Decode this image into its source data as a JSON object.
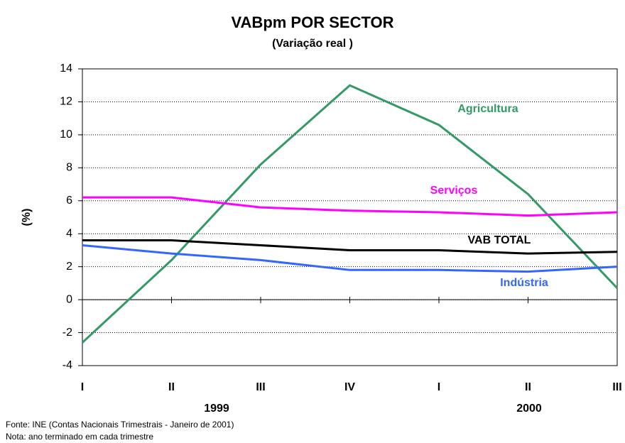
{
  "chart_data": {
    "type": "line",
    "title": "VABpm POR SECTOR",
    "subtitle": "(Variação real )",
    "y_label": "(%)",
    "categories": [
      "I",
      "II",
      "III",
      "IV",
      "I",
      "II",
      "III"
    ],
    "year_labels": [
      "1999",
      "2000"
    ],
    "series": [
      {
        "name": "Agricultura",
        "color": "#339966",
        "values": [
          -2.6,
          2.4,
          8.2,
          13.0,
          10.6,
          6.4,
          0.7
        ]
      },
      {
        "name": "Serviços",
        "color": "#ff00ff",
        "values": [
          6.2,
          6.2,
          5.6,
          5.4,
          5.3,
          5.1,
          5.3
        ]
      },
      {
        "name": "VAB TOTAL",
        "color": "#000000",
        "values": [
          3.6,
          3.6,
          3.3,
          3.0,
          3.0,
          2.8,
          2.9
        ]
      },
      {
        "name": "Indústria",
        "color": "#3366ff",
        "values": [
          3.3,
          2.8,
          2.4,
          1.8,
          1.8,
          1.7,
          2.0
        ]
      }
    ],
    "ylim": [
      -4,
      14
    ],
    "yticks": [
      -4,
      -2,
      0,
      2,
      4,
      6,
      8,
      10,
      12,
      14
    ],
    "grid": true,
    "notes": [
      "Fonte: INE (Contas Nacionais Trimestrais - Janeiro de 2001)",
      "Nota: ano terminado em cada trimestre"
    ]
  }
}
